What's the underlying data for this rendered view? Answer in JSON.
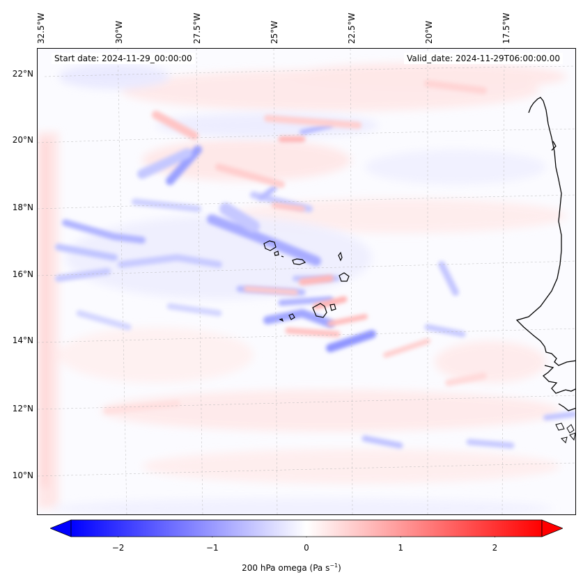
{
  "map": {
    "region": "Eastern tropical North Atlantic / West Africa coast (Cape Verde islands)",
    "lon_range": [
      -33.0,
      -16.0
    ],
    "lat_range": [
      9.0,
      22.8
    ],
    "lon_labels": [
      "32.5°W",
      "30°W",
      "27.5°W",
      "25°W",
      "22.5°W",
      "20°W",
      "17.5°W"
    ],
    "lat_labels": [
      "22°N",
      "20°N",
      "18°N",
      "16°N",
      "14°N",
      "12°N",
      "10°N"
    ],
    "start_date_text": "Start date: 2024-11-29_00:00:00",
    "valid_date_text": "Valid_date: 2024-11-29T06:00:00.00",
    "field": "200 hPa omega",
    "colors": {
      "negative": "#0000ff",
      "positive": "#ff0000",
      "zero": "#ffffff",
      "coastline": "#000000"
    }
  },
  "colorbar": {
    "label_main": "200 hPa omega (Pa s",
    "label_sup": "−1",
    "label_end": ")",
    "range": [
      -2.5,
      2.5
    ],
    "ticks": [
      {
        "value": -2,
        "label": "−2"
      },
      {
        "value": -1,
        "label": "−1"
      },
      {
        "value": 0,
        "label": "0"
      },
      {
        "value": 1,
        "label": "1"
      },
      {
        "value": 2,
        "label": "2"
      }
    ]
  }
}
